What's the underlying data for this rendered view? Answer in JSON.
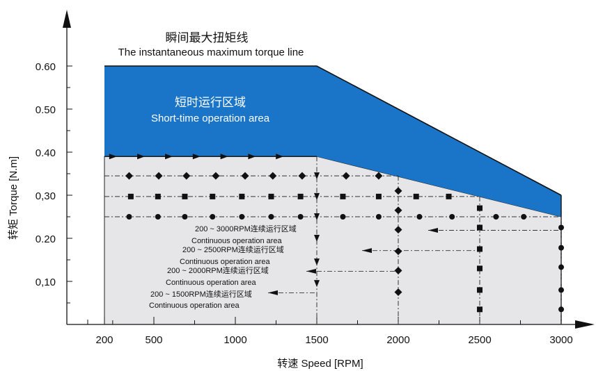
{
  "chart_data": {
    "type": "area",
    "title": "瞬间最大扭矩线",
    "subtitle": "The instantaneous maximum torque line",
    "xlabel": "转速 Speed [RPM]",
    "ylabel": "转矩 Torque [N.m]",
    "x_ticks": [
      "200",
      "500",
      "1000",
      "1500",
      "2000",
      "2500",
      "3000"
    ],
    "y_ticks": [
      "0.60",
      "0.50",
      "0.40",
      "0,30",
      "0.20",
      "0,10"
    ],
    "xlim": [
      0,
      3200
    ],
    "ylim": [
      0,
      0.68
    ],
    "grid": false,
    "colors": {
      "short_time": "#1a75c9",
      "continuous": "#e6e6e8",
      "outline": "#111111"
    },
    "max_torque_line": {
      "x": [
        200,
        1500,
        3000
      ],
      "y": [
        0.6,
        0.6,
        0.3
      ]
    },
    "short_time_area": {
      "label_cn": "短时运行区域",
      "label_en": "Short-time operation area",
      "upper": {
        "x": [
          200,
          1500,
          3000
        ],
        "y": [
          0.6,
          0.6,
          0.3
        ]
      },
      "lower": {
        "x": [
          200,
          1500,
          3000
        ],
        "y": [
          0.39,
          0.39,
          0.25
        ]
      }
    },
    "continuous_area": {
      "x": [
        200,
        1500,
        3000
      ],
      "y": [
        0.39,
        0.39,
        0.25
      ]
    },
    "series": [
      {
        "max_rpm": 1500,
        "y": 0.39,
        "marker": "triangle",
        "x": [
          250,
          420,
          590,
          760,
          930,
          1100,
          1270
        ]
      },
      {
        "max_rpm": 2000,
        "y": 0.345,
        "marker": "diamond",
        "x": [
          350,
          530,
          700,
          880,
          1060,
          1230,
          1410,
          1680,
          1880
        ]
      },
      {
        "max_rpm": 2500,
        "y": 0.297,
        "marker": "square",
        "x": [
          360,
          525,
          690,
          860,
          1040,
          1220,
          1400,
          1660,
          1880,
          2110,
          2310
        ]
      },
      {
        "max_rpm": 3000,
        "y": 0.25,
        "marker": "circle",
        "x": [
          350,
          525,
          690,
          860,
          1040,
          1220,
          1400,
          1660,
          1880,
          2130,
          2330,
          2600,
          2770
        ]
      }
    ],
    "verticals": [
      {
        "x": 1500,
        "marker": "triangle-down",
        "y": [
          0.345,
          0.297,
          0.25,
          0.2,
          0.145,
          0.095
        ]
      },
      {
        "x": 2000,
        "marker": "diamond",
        "y": [
          0.31,
          0.265,
          0.22,
          0.17,
          0.125,
          0.075
        ]
      },
      {
        "x": 2500,
        "marker": "square",
        "y": [
          0.27,
          0.225,
          0.175,
          0.13,
          0.08,
          0.035
        ]
      },
      {
        "x": 3000,
        "marker": "circle",
        "y": [
          0.225,
          0.178,
          0.133,
          0.08,
          0.035
        ]
      }
    ],
    "annotations": [
      {
        "range": "200 ~ 3000RPM连续运行区域",
        "en": "Continuous operation area",
        "arrow_x": 615,
        "y": 0.225,
        "end_rpm": 3000
      },
      {
        "range": "200 ~ 2500RPM连续运行区域",
        "en": "Continuous operation area",
        "arrow_x": 520,
        "y": 0.178,
        "end_rpm": 2500
      },
      {
        "range": "200 ~ 2000RPM连续运行区域",
        "en": "Continuous operation area",
        "arrow_x": 440,
        "y": 0.13,
        "end_rpm": 2000
      },
      {
        "range": "200 ~ 1500RPM连续运行区域",
        "en": "Continuous operation area",
        "arrow_x": 385,
        "y": 0.08,
        "end_rpm": 1500
      }
    ]
  }
}
